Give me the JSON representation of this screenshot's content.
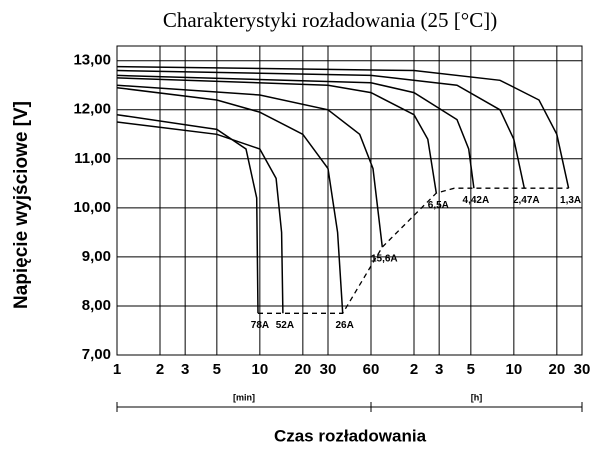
{
  "chart_data": {
    "type": "line",
    "title": "Charakterystyki rozładowania (25 [°C])",
    "xlabel": "Czas rozładowania",
    "ylabel": "Napięcie wyjściowe  [V]",
    "xscale": "log",
    "grid": true,
    "xlim": [
      1,
      1800
    ],
    "ylim": [
      7,
      13.3
    ],
    "xticks": [
      1,
      2,
      3,
      5,
      10,
      20,
      30,
      60,
      {
        "value": 120,
        "label": "2"
      },
      {
        "value": 180,
        "label": "3"
      },
      {
        "value": 300,
        "label": "5"
      },
      {
        "value": 600,
        "label": "10"
      },
      {
        "value": 1200,
        "label": "20"
      },
      {
        "value": 1800,
        "label": "30"
      }
    ],
    "yticks": [
      {
        "value": 7,
        "label": "7,00"
      },
      {
        "value": 8,
        "label": "8,00"
      },
      {
        "value": 9,
        "label": "9,00"
      },
      {
        "value": 10,
        "label": "10,00"
      },
      {
        "value": 11,
        "label": "11,00"
      },
      {
        "value": 12,
        "label": "12,00"
      },
      {
        "value": 13,
        "label": "13,00"
      }
    ],
    "unit_scale": [
      {
        "label": "[min]",
        "from": 1,
        "to": 60
      },
      {
        "label": "[h]",
        "from": 60,
        "to": 1800
      }
    ],
    "series": [
      {
        "name": "78A",
        "color": "#000000",
        "x": [
          1,
          5,
          8,
          9.5,
          9.7
        ],
        "values": [
          11.9,
          11.6,
          11.2,
          10.2,
          7.85
        ]
      },
      {
        "name": "52A",
        "color": "#000000",
        "x": [
          1,
          5,
          10,
          13,
          14.2,
          14.5
        ],
        "values": [
          11.75,
          11.5,
          11.2,
          10.6,
          9.5,
          7.85
        ]
      },
      {
        "name": "26A",
        "color": "#000000",
        "x": [
          1,
          5,
          10,
          20,
          30,
          35,
          38
        ],
        "values": [
          12.45,
          12.2,
          11.95,
          11.5,
          10.8,
          9.5,
          7.85
        ]
      },
      {
        "name": "15,6A",
        "color": "#000000",
        "x": [
          1,
          10,
          30,
          50,
          62,
          72
        ],
        "values": [
          12.5,
          12.3,
          12.0,
          11.5,
          10.8,
          9.2
        ]
      },
      {
        "name": "6,5A",
        "color": "#000000",
        "x": [
          1,
          30,
          60,
          120,
          150,
          172
        ],
        "values": [
          12.65,
          12.5,
          12.35,
          11.9,
          11.4,
          10.3
        ]
      },
      {
        "name": "4,42A",
        "color": "#000000",
        "x": [
          1,
          60,
          120,
          240,
          290,
          315
        ],
        "values": [
          12.7,
          12.55,
          12.35,
          11.8,
          11.2,
          10.4
        ]
      },
      {
        "name": "2,47A",
        "color": "#000000",
        "x": [
          1,
          60,
          240,
          480,
          600,
          710
        ],
        "values": [
          12.8,
          12.7,
          12.5,
          12.0,
          11.4,
          10.4
        ]
      },
      {
        "name": "1,3A",
        "color": "#000000",
        "x": [
          1,
          120,
          480,
          900,
          1200,
          1450
        ],
        "values": [
          12.88,
          12.8,
          12.6,
          12.2,
          11.5,
          10.4
        ]
      },
      {
        "color": "#000000",
        "dash": true,
        "x": [
          9.7,
          38,
          72,
          172,
          230,
          1450
        ],
        "values": [
          7.85,
          7.85,
          9.2,
          10.3,
          10.4,
          10.4
        ]
      }
    ]
  }
}
